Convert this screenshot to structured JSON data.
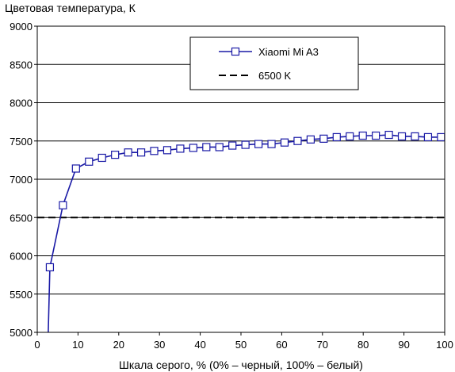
{
  "chart_data": {
    "type": "line",
    "ylabel": "Цветовая температура, К",
    "xlabel": "Шкала серого, % (0% – черный, 100% – белый)",
    "xlim": [
      0,
      100
    ],
    "ylim": [
      5000,
      9000
    ],
    "x_ticks": [
      0,
      10,
      20,
      30,
      40,
      50,
      60,
      70,
      80,
      90,
      100
    ],
    "y_ticks": [
      5000,
      5500,
      6000,
      6500,
      7000,
      7500,
      8000,
      8500,
      9000
    ],
    "grid": "horizontal",
    "legend_position": "top-right",
    "series": [
      {
        "name": "Xiaomi Mi A3",
        "color": "#1a1aa6",
        "marker": "open-square",
        "x": [
          2.7,
          3.1,
          6.3,
          9.5,
          12.7,
          15.9,
          19.1,
          22.3,
          25.5,
          28.7,
          31.9,
          35.1,
          38.3,
          41.5,
          44.7,
          47.9,
          51.1,
          54.3,
          57.5,
          60.7,
          63.9,
          67.1,
          70.3,
          73.5,
          76.7,
          79.9,
          83.1,
          86.3,
          89.5,
          92.7,
          95.9,
          99.1
        ],
        "values": [
          5000,
          5850,
          6660,
          7140,
          7230,
          7280,
          7320,
          7350,
          7350,
          7370,
          7380,
          7400,
          7410,
          7420,
          7420,
          7440,
          7450,
          7460,
          7460,
          7480,
          7500,
          7520,
          7530,
          7550,
          7560,
          7570,
          7570,
          7580,
          7560,
          7560,
          7550,
          7550
        ]
      },
      {
        "name": "6500 K",
        "color": "#000000",
        "style": "dashed",
        "x": [
          0,
          100
        ],
        "values": [
          6500,
          6500
        ]
      }
    ]
  }
}
